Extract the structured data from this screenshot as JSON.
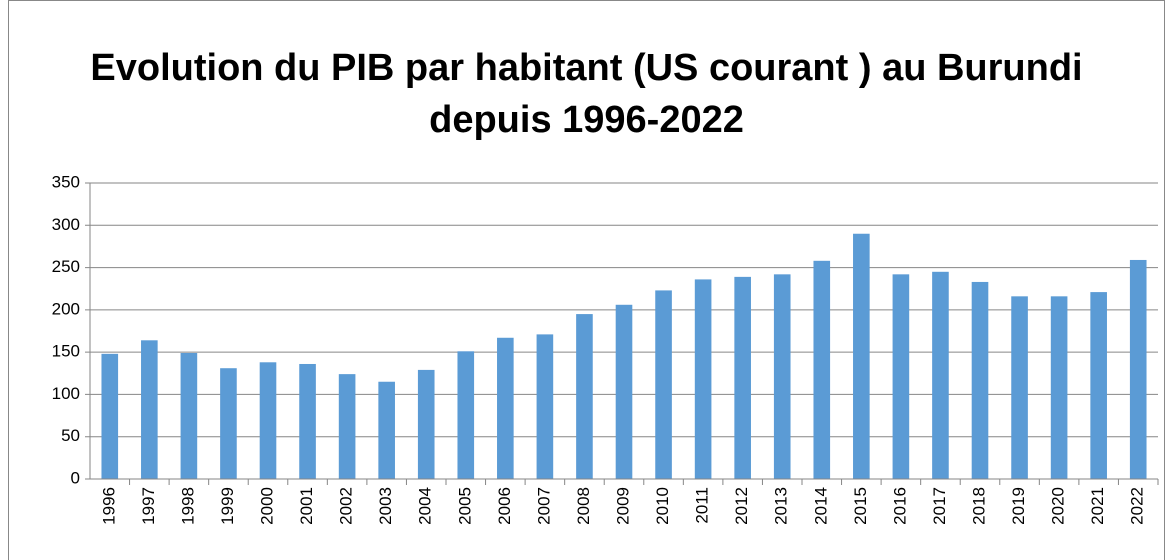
{
  "chart_data": {
    "type": "bar",
    "title": "Evolution du PIB par habitant (US courant ) au Burundi depuis 1996-2022",
    "categories": [
      "1996",
      "1997",
      "1998",
      "1999",
      "2000",
      "2001",
      "2002",
      "2003",
      "2004",
      "2005",
      "2006",
      "2007",
      "2008",
      "2009",
      "2010",
      "2011",
      "2012",
      "2013",
      "2014",
      "2015",
      "2016",
      "2017",
      "2018",
      "2019",
      "2020",
      "2021",
      "2022"
    ],
    "values": [
      148,
      164,
      149,
      131,
      138,
      136,
      124,
      115,
      129,
      151,
      167,
      171,
      195,
      206,
      223,
      236,
      239,
      242,
      258,
      290,
      242,
      245,
      233,
      216,
      216,
      221,
      259
    ],
    "color": "#5b9bd5",
    "ylim": [
      0,
      350
    ],
    "yticks": [
      0,
      50,
      100,
      150,
      200,
      250,
      300,
      350
    ],
    "grid": true
  }
}
